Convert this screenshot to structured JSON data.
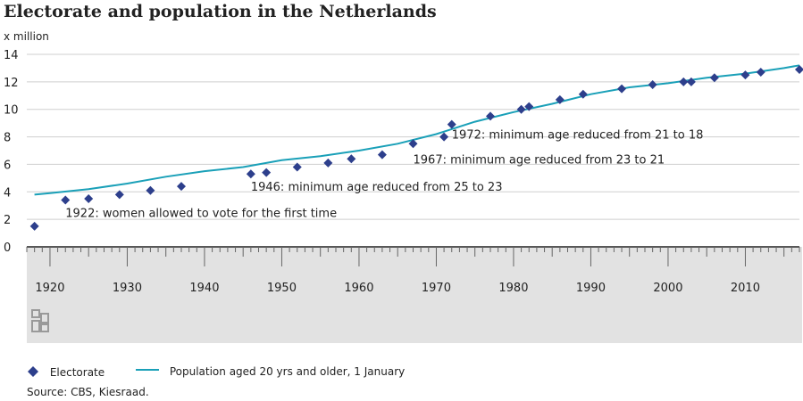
{
  "chart_data": {
    "type": "line",
    "title": "Electorate and population in the Netherlands",
    "ylabel": "x million",
    "xlim": [
      1917,
      2017
    ],
    "ylim": [
      0,
      14
    ],
    "yticks": [
      0,
      2,
      4,
      6,
      8,
      10,
      12,
      14
    ],
    "xticks": [
      1920,
      1930,
      1940,
      1950,
      1960,
      1970,
      1980,
      1990,
      2000,
      2010
    ],
    "grid": true,
    "legend_position": "bottom",
    "series": [
      {
        "name": "Electorate",
        "kind": "scatter",
        "marker": "diamond",
        "color": "#2d3f8c",
        "points": [
          {
            "x": 1918,
            "y": 1.5
          },
          {
            "x": 1922,
            "y": 3.4
          },
          {
            "x": 1925,
            "y": 3.5
          },
          {
            "x": 1929,
            "y": 3.8
          },
          {
            "x": 1933,
            "y": 4.1
          },
          {
            "x": 1937,
            "y": 4.4
          },
          {
            "x": 1946,
            "y": 5.3
          },
          {
            "x": 1948,
            "y": 5.4
          },
          {
            "x": 1952,
            "y": 5.8
          },
          {
            "x": 1956,
            "y": 6.1
          },
          {
            "x": 1959,
            "y": 6.4
          },
          {
            "x": 1963,
            "y": 6.7
          },
          {
            "x": 1967,
            "y": 7.5
          },
          {
            "x": 1971,
            "y": 8.0
          },
          {
            "x": 1972,
            "y": 8.9
          },
          {
            "x": 1977,
            "y": 9.5
          },
          {
            "x": 1981,
            "y": 10.0
          },
          {
            "x": 1982,
            "y": 10.2
          },
          {
            "x": 1986,
            "y": 10.7
          },
          {
            "x": 1989,
            "y": 11.1
          },
          {
            "x": 1994,
            "y": 11.5
          },
          {
            "x": 1998,
            "y": 11.8
          },
          {
            "x": 2002,
            "y": 12.0
          },
          {
            "x": 2003,
            "y": 12.0
          },
          {
            "x": 2006,
            "y": 12.3
          },
          {
            "x": 2010,
            "y": 12.5
          },
          {
            "x": 2012,
            "y": 12.7
          },
          {
            "x": 2017,
            "y": 12.9
          }
        ]
      },
      {
        "name": "Population aged 20 yrs and older, 1 January",
        "kind": "line",
        "color": "#1aa0b8",
        "points": [
          {
            "x": 1918,
            "y": 3.8
          },
          {
            "x": 1920,
            "y": 3.9
          },
          {
            "x": 1925,
            "y": 4.2
          },
          {
            "x": 1930,
            "y": 4.6
          },
          {
            "x": 1935,
            "y": 5.1
          },
          {
            "x": 1940,
            "y": 5.5
          },
          {
            "x": 1945,
            "y": 5.8
          },
          {
            "x": 1950,
            "y": 6.3
          },
          {
            "x": 1955,
            "y": 6.6
          },
          {
            "x": 1960,
            "y": 7.0
          },
          {
            "x": 1965,
            "y": 7.5
          },
          {
            "x": 1970,
            "y": 8.2
          },
          {
            "x": 1975,
            "y": 9.1
          },
          {
            "x": 1980,
            "y": 9.8
          },
          {
            "x": 1985,
            "y": 10.4
          },
          {
            "x": 1990,
            "y": 11.1
          },
          {
            "x": 1995,
            "y": 11.6
          },
          {
            "x": 2000,
            "y": 11.9
          },
          {
            "x": 2005,
            "y": 12.3
          },
          {
            "x": 2010,
            "y": 12.6
          },
          {
            "x": 2015,
            "y": 13.0
          },
          {
            "x": 2017,
            "y": 13.2
          }
        ]
      }
    ],
    "annotations": [
      {
        "text": "1922: women allowed to vote for the first time",
        "x": 1922,
        "y": 2.5
      },
      {
        "text": "1946: minimum age reduced from 25 to 23",
        "x": 1946,
        "y": 4.4
      },
      {
        "text": "1967: minimum age reduced from 23 to 21",
        "x": 1967,
        "y": 6.4
      },
      {
        "text": "1972: minimum age reduced from 21 to 18",
        "x": 1972,
        "y": 8.2
      }
    ]
  },
  "source": "Source: CBS, Kiesraad."
}
